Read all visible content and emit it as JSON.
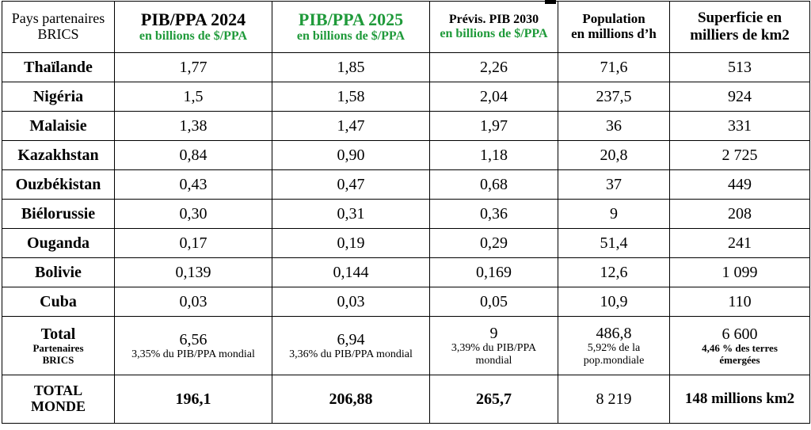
{
  "headers": [
    {
      "line1": "Pays partenaires",
      "line2": "BRICS"
    },
    {
      "line1": "PIB/PPA 2024",
      "line2": "en billions de $/PPA"
    },
    {
      "line1": "PIB/PPA 2025",
      "line2": "en billions de $/PPA"
    },
    {
      "line1": "Prévis. PIB  2030",
      "line2": "en billions de $/PPA"
    },
    {
      "line1": "Population",
      "line2": "en millions d’h"
    },
    {
      "line1": "Superficie  en",
      "line2": "milliers de km2"
    }
  ],
  "rows": [
    {
      "name": "Thaïlande",
      "pib2024": "1,77",
      "pib2025": "1,85",
      "pib2030": "2,26",
      "population": "71,6",
      "superficie": "513"
    },
    {
      "name": "Nigéria",
      "pib2024": "1,5",
      "pib2025": "1,58",
      "pib2030": "2,04",
      "population": "237,5",
      "superficie": "924"
    },
    {
      "name": "Malaisie",
      "pib2024": "1,38",
      "pib2025": "1,47",
      "pib2030": "1,97",
      "population": "36",
      "superficie": "331"
    },
    {
      "name": "Kazakhstan",
      "pib2024": "0,84",
      "pib2025": "0,90",
      "pib2030": "1,18",
      "population": "20,8",
      "superficie": "2 725"
    },
    {
      "name": "Ouzbékistan",
      "pib2024": "0,43",
      "pib2025": "0,47",
      "pib2030": "0,68",
      "population": "37",
      "superficie": "449"
    },
    {
      "name": "Biélorussie",
      "pib2024": "0,30",
      "pib2025": "0,31",
      "pib2030": "0,36",
      "population": "9",
      "superficie": "208"
    },
    {
      "name": "Ouganda",
      "pib2024": "0,17",
      "pib2025": "0,19",
      "pib2030": "0,29",
      "population": "51,4",
      "superficie": "241"
    },
    {
      "name": "Bolivie",
      "pib2024": "0,139",
      "pib2025": "0,144",
      "pib2030": "0,169",
      "population": "12,6",
      "superficie": "1 099"
    },
    {
      "name": "Cuba",
      "pib2024": "0,03",
      "pib2025": "0,03",
      "pib2030": "0,05",
      "population": "10,9",
      "superficie": "110"
    }
  ],
  "total": {
    "label1": "Total",
    "label2": "Partenaires",
    "label3": "BRICS",
    "pib2024": "6,56",
    "pib2024_note": "3,35% du PIB/PPA mondial",
    "pib2025": "6,94",
    "pib2025_note": "3,36% du PIB/PPA mondial",
    "pib2030": "9",
    "pib2030_note1": "3,39%  du PIB/PPA",
    "pib2030_note2": "mondial",
    "population": "486,8",
    "population_note1": "5,92% de la",
    "population_note2": "pop.mondiale",
    "superficie": "6 600",
    "superficie_note1": "4,46 % des terres",
    "superficie_note2": "émergées"
  },
  "world": {
    "label1": "TOTAL",
    "label2": "MONDE",
    "pib2024": "196,1",
    "pib2025": "206,88",
    "pib2030": "265,7",
    "population": "8 219",
    "superficie": "148  millions km2"
  },
  "colors": {
    "accent_green": "#1f9a3a"
  }
}
